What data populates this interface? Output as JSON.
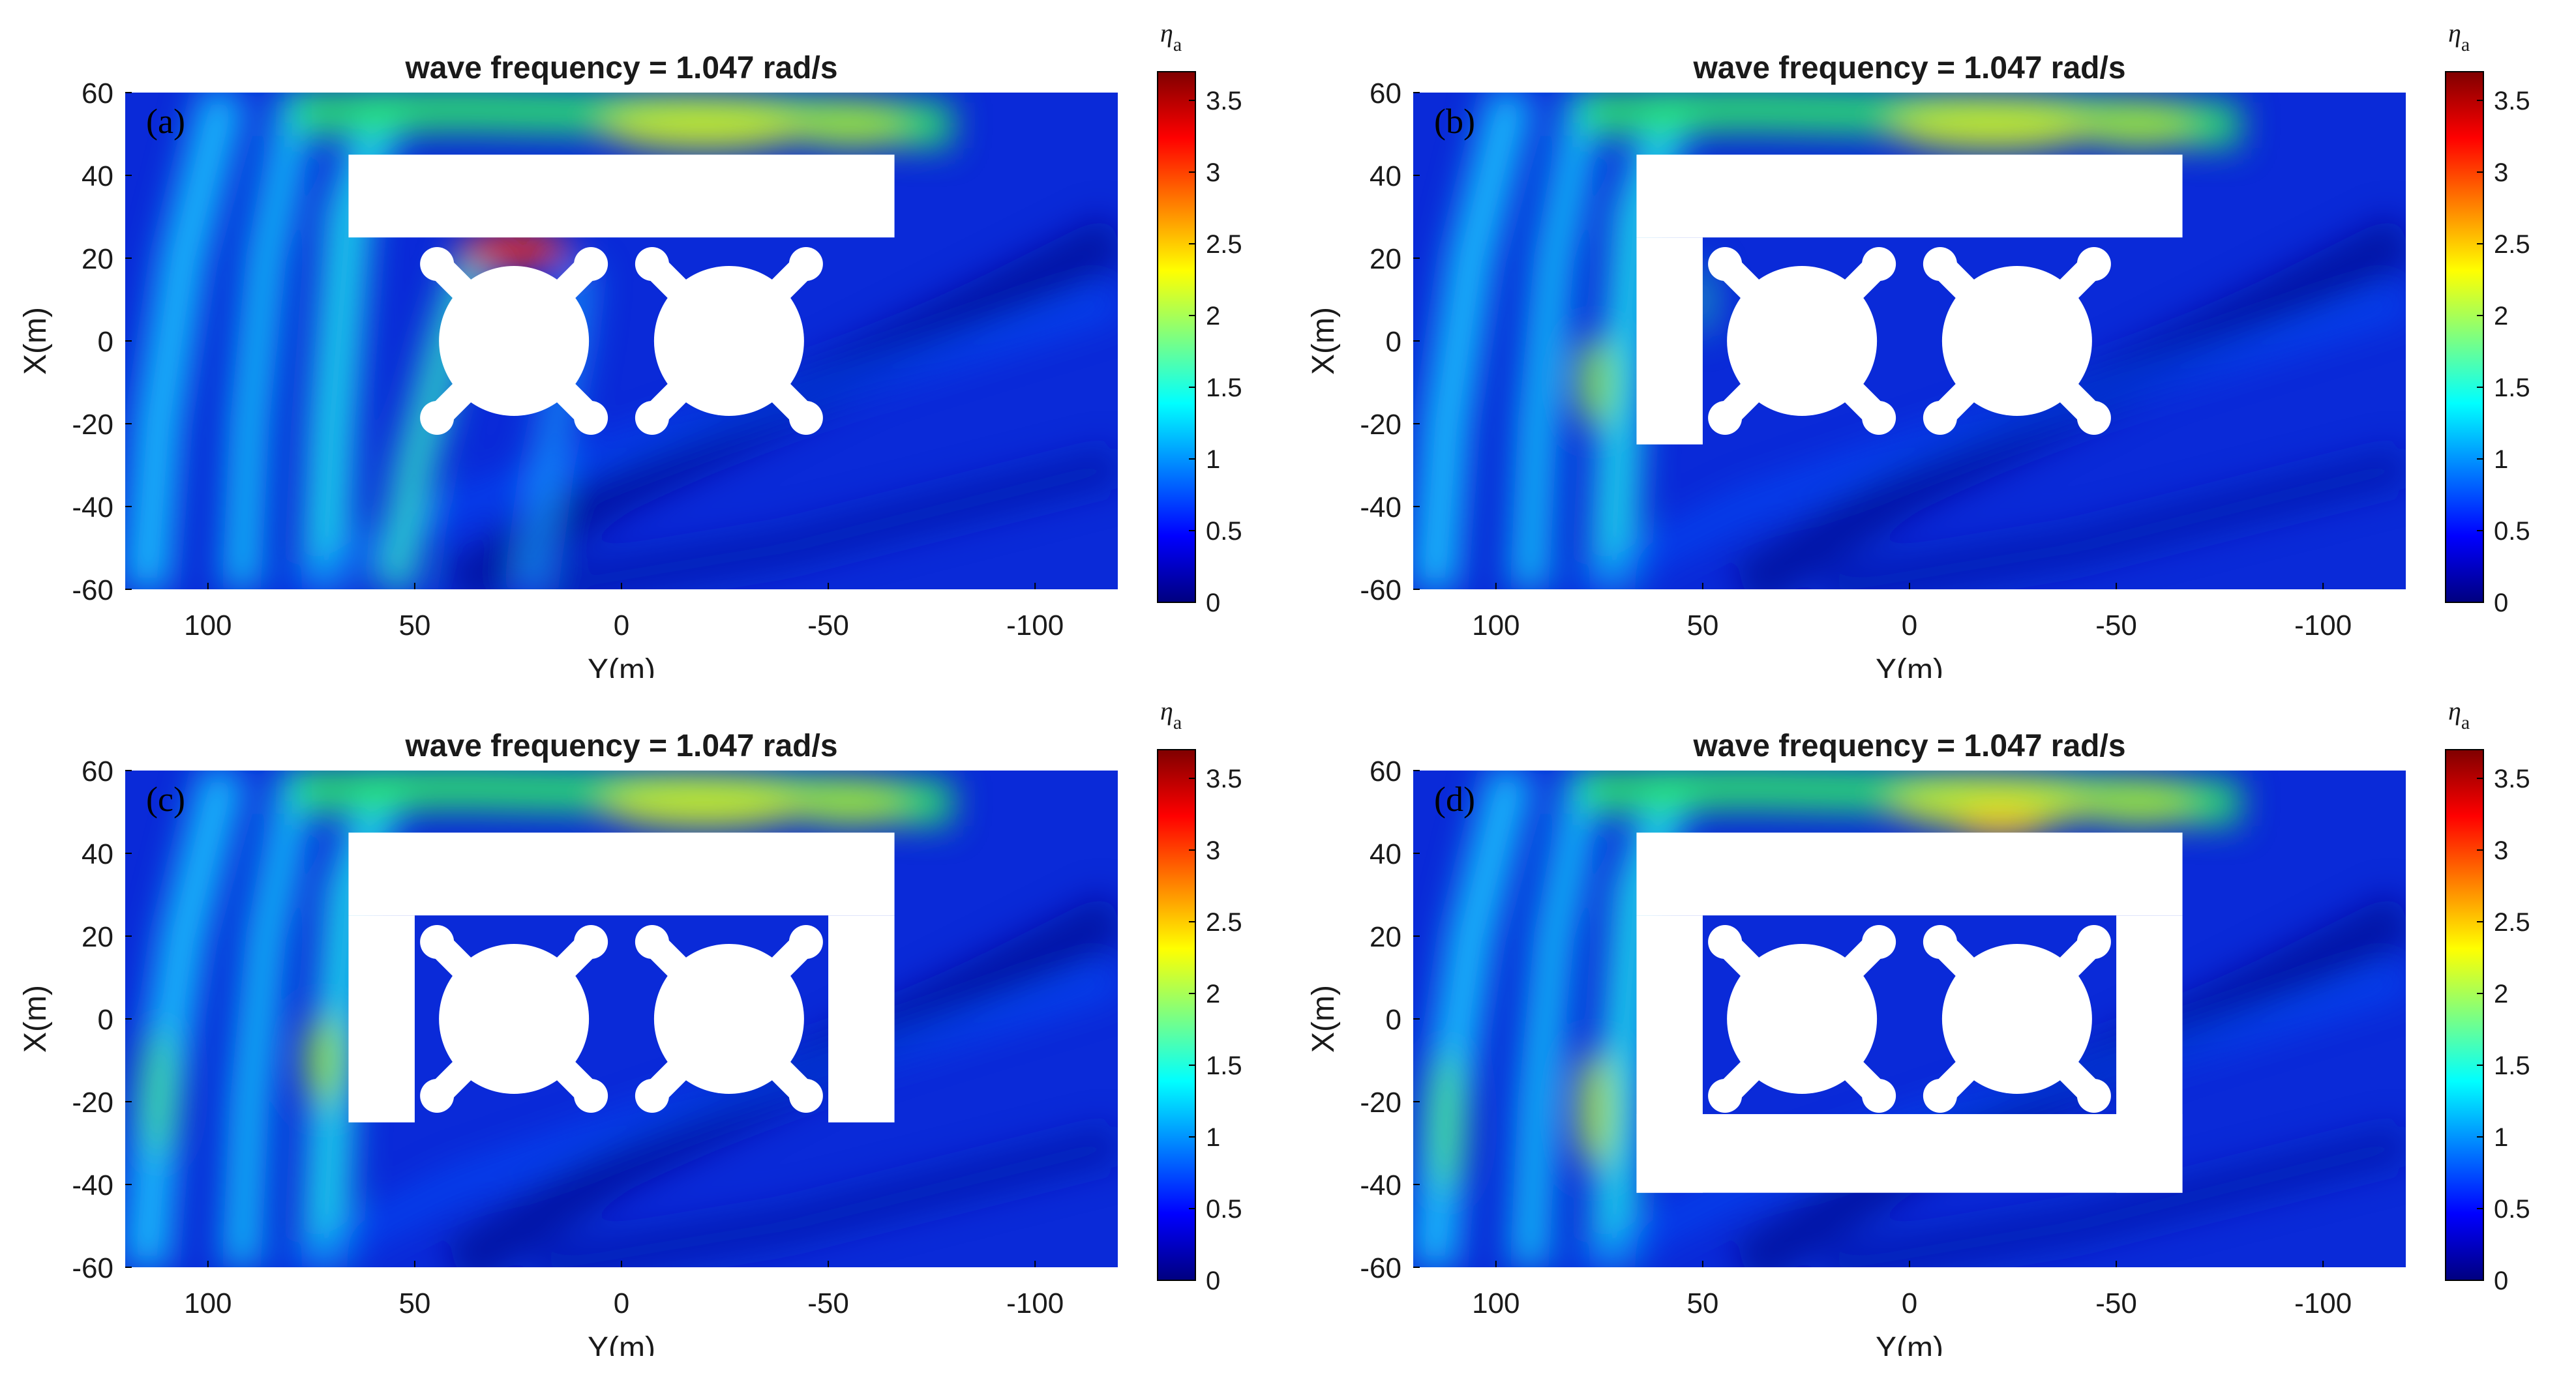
{
  "chart_data": [
    {
      "type": "heatmap",
      "panel_label": "(a)",
      "title": "wave frequency = 1.047 rad/s",
      "xlabel": "Y(m)",
      "ylabel": "X(m)",
      "xlim": [
        120,
        -120
      ],
      "ylim": [
        -60,
        60
      ],
      "xticks": [
        "100",
        "50",
        "0",
        "-50",
        "-100"
      ],
      "yticks": [
        "60",
        "40",
        "20",
        "0",
        "-20",
        "-40",
        "-60"
      ],
      "colorbar": {
        "label_main": "η",
        "label_sub": "a",
        "range": [
          0,
          3.7
        ],
        "ticks": [
          "3.5",
          "3",
          "2.5",
          "2",
          "1.5",
          "1",
          "0.5",
          "0"
        ]
      },
      "breakwater_segments": [
        {
          "y_range": [
            66,
            -66
          ],
          "x_range": [
            25,
            45
          ]
        }
      ],
      "max_elevation_note": "≈3.5 near front column (Y≈25, X≈22)"
    },
    {
      "type": "heatmap",
      "panel_label": "(b)",
      "title": "wave frequency = 1.047 rad/s",
      "xlabel": "Y(m)",
      "ylabel": "X(m)",
      "xlim": [
        120,
        -120
      ],
      "ylim": [
        -60,
        60
      ],
      "xticks": [
        "100",
        "50",
        "0",
        "-50",
        "-100"
      ],
      "yticks": [
        "60",
        "40",
        "20",
        "0",
        "-20",
        "-40",
        "-60"
      ],
      "colorbar": {
        "label_main": "η",
        "label_sub": "a",
        "range": [
          0,
          3.7
        ],
        "ticks": [
          "3.5",
          "3",
          "2.5",
          "2",
          "1.5",
          "1",
          "0.5",
          "0"
        ]
      },
      "breakwater_segments": [
        {
          "y_range": [
            66,
            -66
          ],
          "x_range": [
            25,
            45
          ]
        },
        {
          "y_range": [
            66,
            50
          ],
          "x_range": [
            -25,
            25
          ]
        }
      ]
    },
    {
      "type": "heatmap",
      "panel_label": "(c)",
      "title": "wave frequency = 1.047 rad/s",
      "xlabel": "Y(m)",
      "ylabel": "X(m)",
      "xlim": [
        120,
        -120
      ],
      "ylim": [
        -60,
        60
      ],
      "xticks": [
        "100",
        "50",
        "0",
        "-50",
        "-100"
      ],
      "yticks": [
        "60",
        "40",
        "20",
        "0",
        "-20",
        "-40",
        "-60"
      ],
      "colorbar": {
        "label_main": "η",
        "label_sub": "a",
        "range": [
          0,
          3.7
        ],
        "ticks": [
          "3.5",
          "3",
          "2.5",
          "2",
          "1.5",
          "1",
          "0.5",
          "0"
        ]
      },
      "breakwater_segments": [
        {
          "y_range": [
            66,
            -66
          ],
          "x_range": [
            25,
            45
          ]
        },
        {
          "y_range": [
            66,
            50
          ],
          "x_range": [
            -25,
            25
          ]
        },
        {
          "y_range": [
            -50,
            -66
          ],
          "x_range": [
            -25,
            25
          ]
        }
      ]
    },
    {
      "type": "heatmap",
      "panel_label": "(d)",
      "title": "wave frequency = 1.047 rad/s",
      "xlabel": "Y(m)",
      "ylabel": "X(m)",
      "xlim": [
        120,
        -120
      ],
      "ylim": [
        -60,
        60
      ],
      "xticks": [
        "100",
        "50",
        "0",
        "-50",
        "-100"
      ],
      "yticks": [
        "60",
        "40",
        "20",
        "0",
        "-20",
        "-40",
        "-60"
      ],
      "colorbar": {
        "label_main": "η",
        "label_sub": "a",
        "range": [
          0,
          3.7
        ],
        "ticks": [
          "3.5",
          "3",
          "2.5",
          "2",
          "1.5",
          "1",
          "0.5",
          "0"
        ]
      },
      "breakwater_segments": [
        {
          "y_range": [
            66,
            -66
          ],
          "x_range": [
            25,
            45
          ]
        },
        {
          "y_range": [
            66,
            50
          ],
          "x_range": [
            -42,
            25
          ]
        },
        {
          "y_range": [
            -50,
            -66
          ],
          "x_range": [
            -42,
            25
          ]
        },
        {
          "y_range": [
            66,
            -66
          ],
          "x_range": [
            -42,
            -23
          ]
        }
      ]
    }
  ]
}
